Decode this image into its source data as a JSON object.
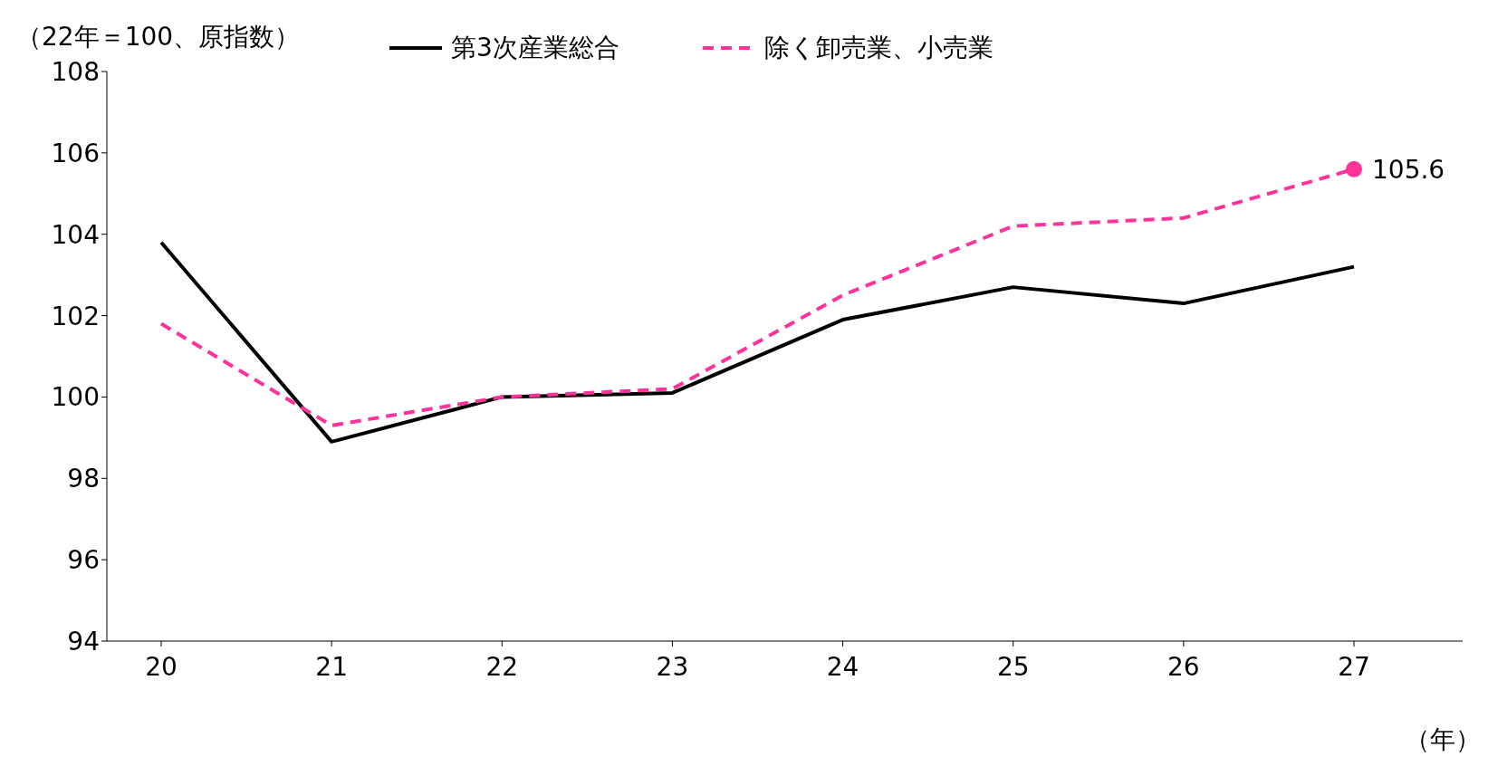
{
  "chart_data": {
    "type": "line",
    "ylabel": "（22年＝100、原指数）",
    "xlabel": "（年）",
    "categories": [
      "20",
      "21",
      "22",
      "23",
      "24",
      "25",
      "26",
      "27"
    ],
    "ylim": [
      94,
      108
    ],
    "yticks": [
      94,
      96,
      98,
      100,
      102,
      104,
      106,
      108
    ],
    "grid": false,
    "legend": "top",
    "marker": "none",
    "series": [
      {
        "name": "第3次産業総合",
        "color": "#000000",
        "line_style": "solid",
        "values": [
          103.8,
          98.9,
          100.0,
          100.1,
          101.9,
          102.7,
          102.3,
          103.2
        ]
      },
      {
        "name": "除く卸売業、小売業",
        "color": "#ff3399",
        "line_style": "dashed",
        "values": [
          101.8,
          99.3,
          100.0,
          100.2,
          102.5,
          104.2,
          104.4,
          105.6
        ],
        "value_labels": [
          null,
          null,
          null,
          null,
          null,
          null,
          null,
          "105.6"
        ]
      }
    ]
  }
}
